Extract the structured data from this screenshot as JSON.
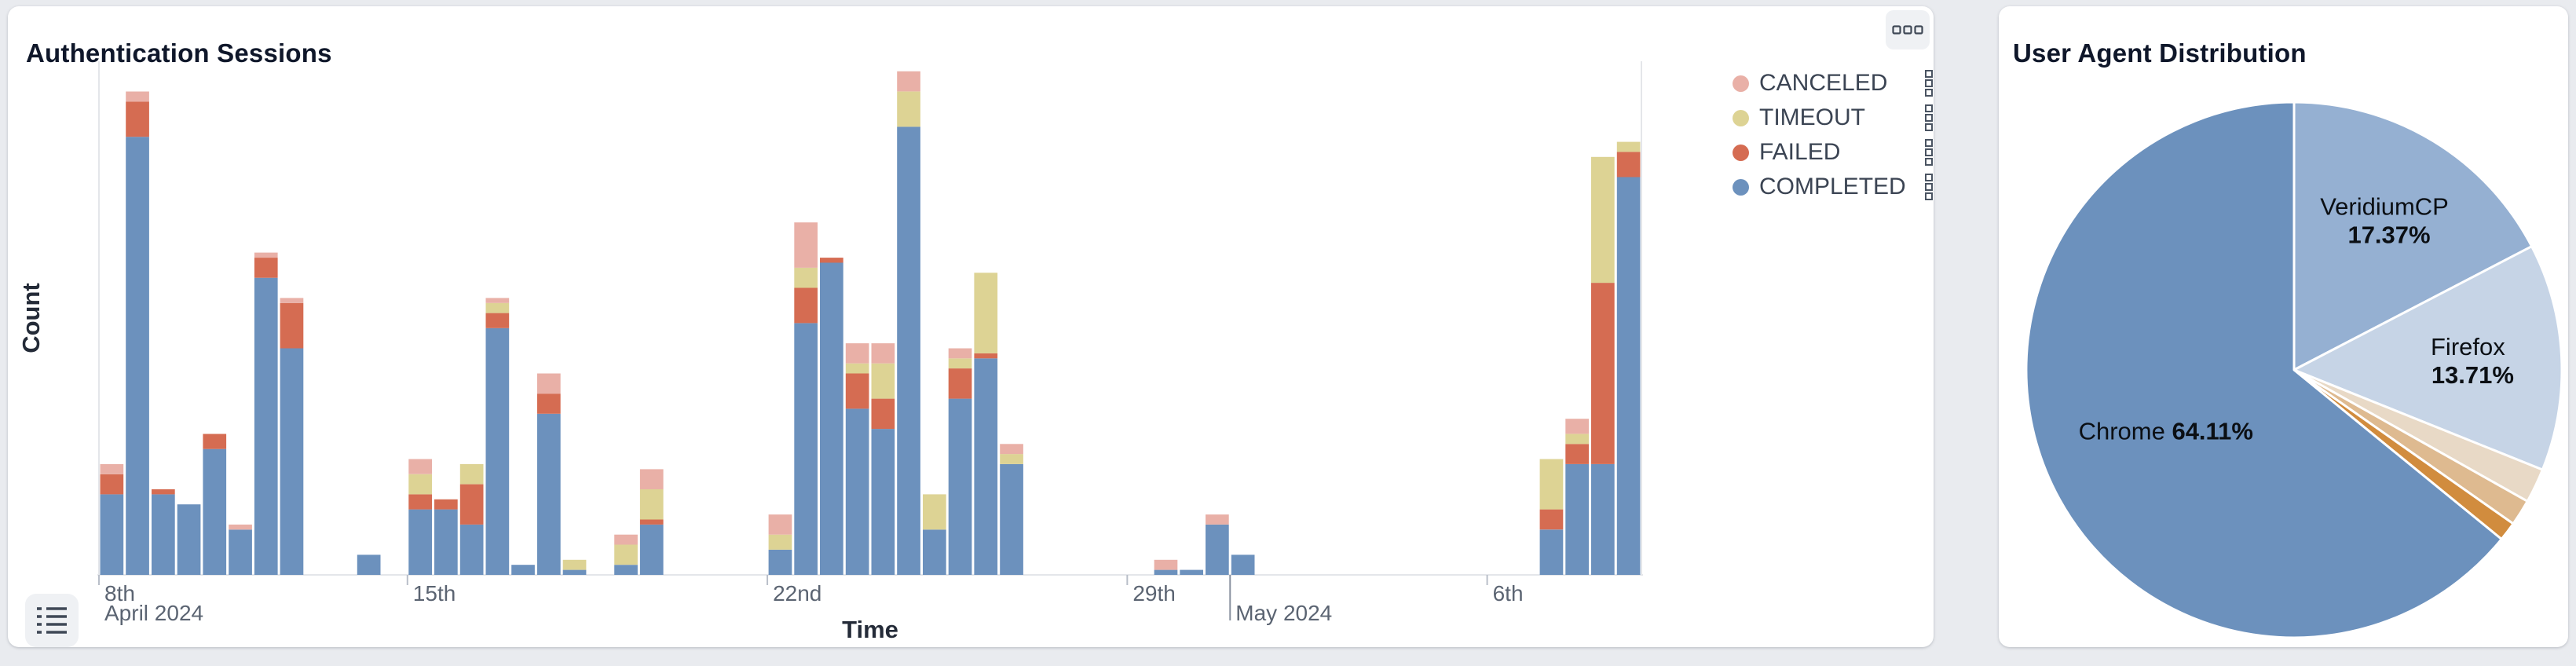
{
  "page": {
    "background": "#e9ebef"
  },
  "cards": {
    "sessions": {
      "title": "Authentication Sessions",
      "y_axis_label": "Count",
      "x_axis_label": "Time",
      "legend": [
        {
          "key": "canceled",
          "label": "CANCELED",
          "color": "#e9b0a7"
        },
        {
          "key": "timeout",
          "label": "TIMEOUT",
          "color": "#ddd394"
        },
        {
          "key": "failed",
          "label": "FAILED",
          "color": "#d56c52"
        },
        {
          "key": "completed",
          "label": "COMPLETED",
          "color": "#6c91bd"
        }
      ],
      "icons": {
        "menu": "three-squares-icon",
        "list": "list-icon",
        "legend_row_handle": "drag-handle-icon"
      }
    },
    "user_agents": {
      "title": "User Agent Distribution"
    }
  },
  "chart_data": [
    {
      "type": "bar",
      "stacked": true,
      "title": "Authentication Sessions",
      "xlabel": "Time",
      "ylabel": "Count",
      "grid": false,
      "y_tick_labels": "none",
      "ylim": [
        0,
        102
      ],
      "legend_position": "top-right",
      "series_order_bottom_to_top": [
        "completed",
        "failed",
        "timeout",
        "canceled"
      ],
      "x_axis": {
        "slots": 60,
        "bin_size": "12h",
        "minor_ticks": [
          {
            "slot": 0,
            "label": "8th"
          },
          {
            "slot": 12,
            "label": "15th"
          },
          {
            "slot": 26,
            "label": "22nd"
          },
          {
            "slot": 40,
            "label": "29th"
          },
          {
            "slot": 54,
            "label": "6th"
          }
        ],
        "month_ticks": [
          {
            "slot": 0,
            "label": "April 2024",
            "line": false
          },
          {
            "slot": 44,
            "label": "May 2024",
            "line": true
          }
        ]
      },
      "bars": [
        {
          "slot": 0,
          "completed": 16,
          "failed": 4,
          "canceled": 2
        },
        {
          "slot": 1,
          "completed": 87,
          "failed": 7,
          "canceled": 2
        },
        {
          "slot": 2,
          "completed": 16,
          "failed": 1
        },
        {
          "slot": 3,
          "completed": 14
        },
        {
          "slot": 4,
          "completed": 25,
          "failed": 3
        },
        {
          "slot": 5,
          "completed": 9,
          "canceled": 1
        },
        {
          "slot": 6,
          "completed": 59,
          "failed": 4,
          "canceled": 1
        },
        {
          "slot": 7,
          "completed": 45,
          "failed": 9,
          "canceled": 1
        },
        {
          "slot": 10,
          "completed": 4
        },
        {
          "slot": 12,
          "completed": 13,
          "failed": 3,
          "timeout": 4,
          "canceled": 3
        },
        {
          "slot": 13,
          "completed": 13,
          "failed": 2
        },
        {
          "slot": 14,
          "completed": 10,
          "failed": 8,
          "timeout": 4
        },
        {
          "slot": 15,
          "completed": 49,
          "failed": 3,
          "timeout": 2,
          "canceled": 1
        },
        {
          "slot": 16,
          "completed": 2
        },
        {
          "slot": 17,
          "completed": 32,
          "failed": 4,
          "canceled": 4
        },
        {
          "slot": 18,
          "completed": 1,
          "timeout": 2
        },
        {
          "slot": 20,
          "completed": 2,
          "timeout": 4,
          "canceled": 2
        },
        {
          "slot": 21,
          "completed": 10,
          "failed": 1,
          "timeout": 6,
          "canceled": 4
        },
        {
          "slot": 26,
          "completed": 5,
          "timeout": 3,
          "canceled": 4
        },
        {
          "slot": 27,
          "completed": 50,
          "failed": 7,
          "timeout": 4,
          "canceled": 9
        },
        {
          "slot": 28,
          "completed": 62,
          "failed": 1
        },
        {
          "slot": 29,
          "completed": 33,
          "failed": 7,
          "timeout": 2,
          "canceled": 4
        },
        {
          "slot": 30,
          "completed": 29,
          "failed": 6,
          "timeout": 7,
          "canceled": 4
        },
        {
          "slot": 31,
          "completed": 89,
          "timeout": 7,
          "canceled": 4
        },
        {
          "slot": 32,
          "completed": 9,
          "timeout": 7
        },
        {
          "slot": 33,
          "completed": 35,
          "failed": 6,
          "timeout": 2,
          "canceled": 2
        },
        {
          "slot": 34,
          "completed": 43,
          "failed": 1,
          "timeout": 16
        },
        {
          "slot": 35,
          "completed": 22,
          "timeout": 2,
          "canceled": 2
        },
        {
          "slot": 41,
          "completed": 1,
          "canceled": 2
        },
        {
          "slot": 42,
          "completed": 1
        },
        {
          "slot": 43,
          "completed": 10,
          "canceled": 2
        },
        {
          "slot": 44,
          "completed": 4
        },
        {
          "slot": 56,
          "completed": 9,
          "failed": 4,
          "timeout": 10
        },
        {
          "slot": 57,
          "completed": 22,
          "failed": 4,
          "timeout": 2,
          "canceled": 3
        },
        {
          "slot": 58,
          "completed": 22,
          "failed": 36,
          "timeout": 25
        },
        {
          "slot": 59,
          "completed": 79,
          "failed": 5,
          "timeout": 2
        }
      ]
    },
    {
      "type": "pie",
      "title": "User Agent Distribution",
      "start_angle_deg": 0,
      "direction": "clockwise",
      "label_text_color": "#0b0f14",
      "slices": [
        {
          "label": "VeridiumCP",
          "value": 17.37,
          "color": "#95b0d2",
          "show_label": true
        },
        {
          "label": "Firefox",
          "value": 13.71,
          "color": "#c6d4e6",
          "show_label": true
        },
        {
          "label": "",
          "value": 2.08,
          "color": "#e8d9c6",
          "show_label": false
        },
        {
          "label": "",
          "value": 1.58,
          "color": "#deba90",
          "show_label": false
        },
        {
          "label": "",
          "value": 1.15,
          "color": "#d18c3e",
          "show_label": false
        },
        {
          "label": "Chrome",
          "value": 64.11,
          "color": "#6c91bd",
          "show_label": true
        }
      ]
    }
  ]
}
